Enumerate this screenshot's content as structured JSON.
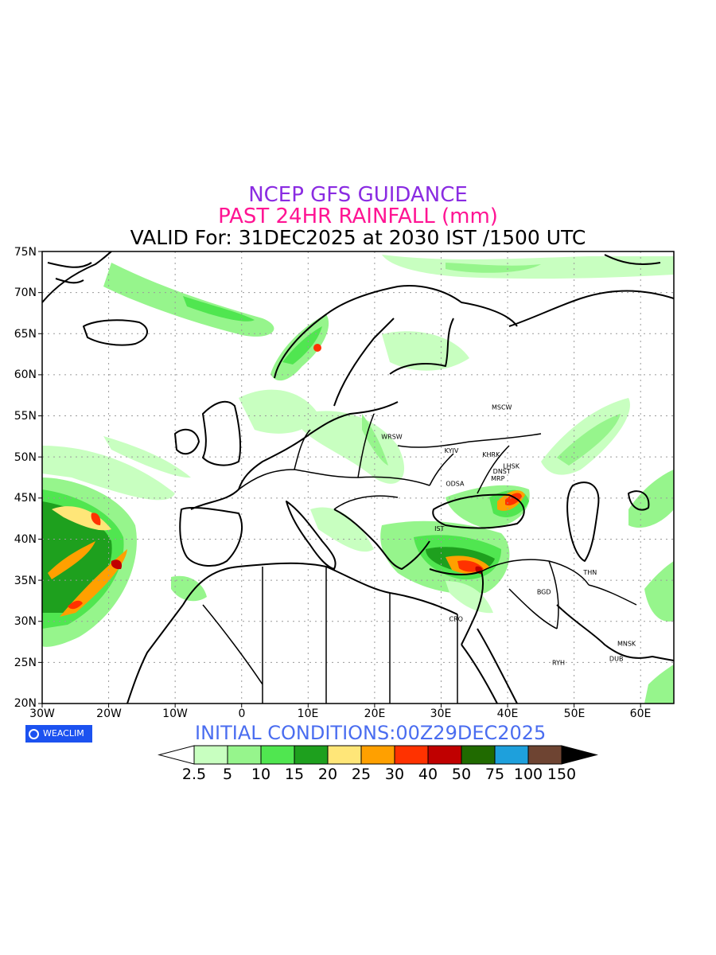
{
  "header": {
    "line1": "NCEP GFS GUIDANCE",
    "line2": "PAST 24HR RAINFALL (mm)",
    "line3": "VALID For: 31DEC2025 at 2030 IST /1500 UTC"
  },
  "axes": {
    "lat_labels": [
      "75N",
      "70N",
      "65N",
      "60N",
      "55N",
      "50N",
      "45N",
      "40N",
      "35N",
      "30N",
      "25N",
      "20N"
    ],
    "lon_labels": [
      "30W",
      "20W",
      "10W",
      "0",
      "10E",
      "20E",
      "30E",
      "40E",
      "50E",
      "60E"
    ]
  },
  "map_extent": {
    "lon_min": -30,
    "lon_max": 65,
    "lat_min": 20,
    "lat_max": 75
  },
  "cities": [
    {
      "name": "MSCW",
      "lon": 37.6,
      "lat": 55.8
    },
    {
      "name": "WRSW",
      "lon": 21.0,
      "lat": 52.2
    },
    {
      "name": "KYIV",
      "lon": 30.5,
      "lat": 50.5
    },
    {
      "name": "KHRK",
      "lon": 36.2,
      "lat": 50.0
    },
    {
      "name": "LHSK",
      "lon": 39.3,
      "lat": 48.6
    },
    {
      "name": "DNST",
      "lon": 37.8,
      "lat": 48.0
    },
    {
      "name": "MRP",
      "lon": 37.5,
      "lat": 47.1
    },
    {
      "name": "ODSA",
      "lon": 30.7,
      "lat": 46.5
    },
    {
      "name": "IST",
      "lon": 29.0,
      "lat": 41.0
    },
    {
      "name": "THN",
      "lon": 51.4,
      "lat": 35.7
    },
    {
      "name": "BGD",
      "lon": 44.4,
      "lat": 33.3
    },
    {
      "name": "CRO",
      "lon": 31.2,
      "lat": 30.0
    },
    {
      "name": "MNSK",
      "lon": 56.5,
      "lat": 27.0
    },
    {
      "name": "RYH",
      "lon": 46.7,
      "lat": 24.7
    },
    {
      "name": "DUB",
      "lon": 55.3,
      "lat": 25.2
    }
  ],
  "logo": {
    "text": "WEACLIM",
    "icon": "copyright-circle-icon"
  },
  "initial_conditions": "INITIAL CONDITIONS:00Z29DEC2025",
  "colorbar": {
    "labels": [
      "2.5",
      "5",
      "10",
      "15",
      "20",
      "25",
      "30",
      "40",
      "50",
      "75",
      "100",
      "150"
    ],
    "colors": [
      "#c8ffc0",
      "#96f58c",
      "#50e650",
      "#1ea01e",
      "#ffe678",
      "#ffa000",
      "#ff3200",
      "#c00000",
      "#206a00",
      "#1ea0dc",
      "#6e4432"
    ]
  }
}
